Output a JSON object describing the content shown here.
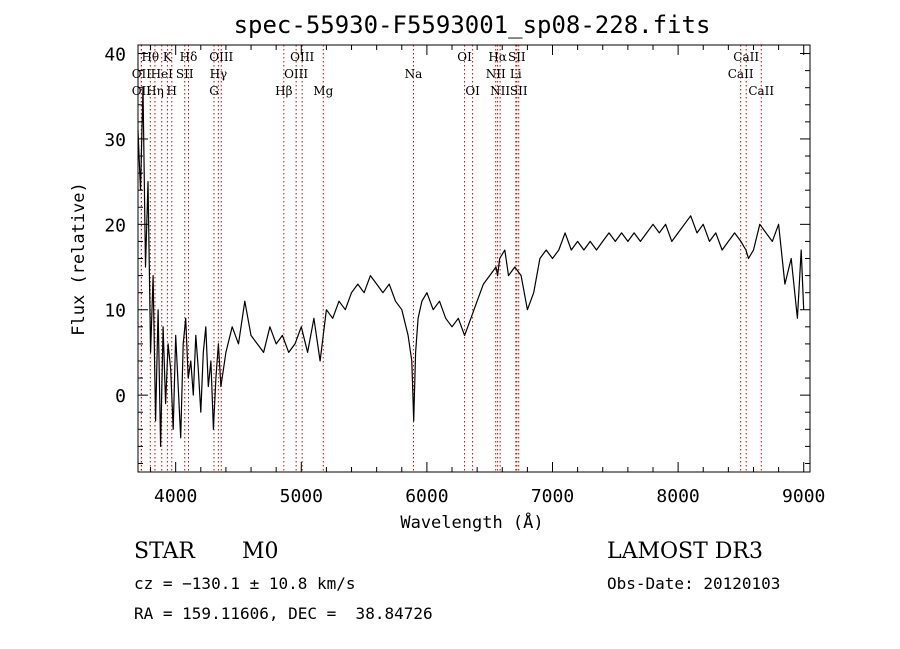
{
  "chart_data": {
    "type": "line",
    "title": "spec-55930-F5593001_sp08-228.fits",
    "xlabel": "Wavelength (Å)",
    "ylabel": "Flux (relative)",
    "xlim": [
      3700,
      9050
    ],
    "ylim": [
      -9,
      41
    ],
    "xticks": [
      4000,
      5000,
      6000,
      7000,
      8000,
      9000
    ],
    "yticks": [
      0,
      10,
      20,
      30,
      40
    ],
    "line_color": "#000000",
    "marker_color": "#cc0000",
    "series": [
      {
        "name": "flux",
        "x": [
          3700,
          3720,
          3740,
          3760,
          3780,
          3800,
          3820,
          3840,
          3860,
          3880,
          3900,
          3920,
          3940,
          3960,
          3980,
          4000,
          4020,
          4040,
          4060,
          4080,
          4100,
          4120,
          4140,
          4160,
          4180,
          4200,
          4220,
          4240,
          4260,
          4280,
          4300,
          4320,
          4340,
          4360,
          4380,
          4400,
          4450,
          4500,
          4550,
          4600,
          4650,
          4700,
          4750,
          4800,
          4850,
          4900,
          4950,
          5000,
          5050,
          5100,
          5150,
          5200,
          5250,
          5300,
          5350,
          5400,
          5450,
          5500,
          5550,
          5600,
          5650,
          5700,
          5750,
          5800,
          5850,
          5880,
          5895,
          5910,
          5930,
          5960,
          6000,
          6050,
          6100,
          6150,
          6200,
          6250,
          6300,
          6350,
          6400,
          6450,
          6500,
          6550,
          6563,
          6580,
          6620,
          6650,
          6700,
          6750,
          6800,
          6850,
          6900,
          6950,
          7000,
          7050,
          7100,
          7150,
          7200,
          7250,
          7300,
          7350,
          7400,
          7450,
          7500,
          7550,
          7600,
          7650,
          7700,
          7750,
          7800,
          7850,
          7900,
          7950,
          8000,
          8050,
          8100,
          8150,
          8200,
          8250,
          8300,
          8350,
          8400,
          8450,
          8500,
          8540,
          8560,
          8600,
          8650,
          8700,
          8750,
          8800,
          8850,
          8900,
          8950,
          8980,
          9000
        ],
        "y": [
          31,
          24,
          36,
          15,
          25,
          5,
          14,
          -3,
          10,
          -6,
          8,
          -1,
          6,
          3,
          -4,
          7,
          1,
          -5,
          6,
          9,
          2,
          4,
          0,
          7,
          3,
          -2,
          5,
          8,
          1,
          4,
          -4,
          2,
          6,
          1,
          3,
          5,
          8,
          6,
          11,
          7,
          6,
          5,
          8,
          6,
          7,
          5,
          6,
          8,
          5,
          9,
          4,
          10,
          9,
          11,
          10,
          12,
          13,
          12,
          14,
          13,
          12,
          13,
          11,
          10,
          7,
          4,
          -3,
          5,
          9,
          11,
          12,
          10,
          11,
          9,
          8,
          9,
          7,
          9,
          11,
          13,
          14,
          15,
          14,
          16,
          17,
          14,
          15,
          14,
          10,
          12,
          16,
          17,
          16,
          17,
          19,
          17,
          18,
          17,
          18,
          17,
          18,
          19,
          18,
          19,
          18,
          19,
          18,
          19,
          20,
          19,
          20,
          18,
          19,
          20,
          21,
          19,
          20,
          18,
          19,
          17,
          18,
          19,
          18,
          17,
          16,
          17,
          20,
          19,
          18,
          20,
          13,
          16,
          9,
          17,
          10
        ]
      }
    ],
    "spectral_lines": [
      {
        "name": "Hθ",
        "x": 3798,
        "row": 1
      },
      {
        "name": "OII",
        "x": 3727,
        "row": 2
      },
      {
        "name": "OII",
        "x": 3727,
        "row": 3
      },
      {
        "name": "Hη",
        "x": 3835,
        "row": 3
      },
      {
        "name": "K",
        "x": 3934,
        "row": 1
      },
      {
        "name": "HeI",
        "x": 3889,
        "row": 2
      },
      {
        "name": "H",
        "x": 3969,
        "row": 3
      },
      {
        "name": "Hδ",
        "x": 4102,
        "row": 1
      },
      {
        "name": "SII",
        "x": 4072,
        "row": 2
      },
      {
        "name": "OIII",
        "x": 4363,
        "row": 1
      },
      {
        "name": "Hγ",
        "x": 4340,
        "row": 2
      },
      {
        "name": "G",
        "x": 4305,
        "row": 3
      },
      {
        "name": "OIII",
        "x": 5007,
        "row": 1
      },
      {
        "name": "OIII",
        "x": 4959,
        "row": 2
      },
      {
        "name": "Hβ",
        "x": 4861,
        "row": 3
      },
      {
        "name": "Mg",
        "x": 5175,
        "row": 3
      },
      {
        "name": "Na",
        "x": 5893,
        "row": 2
      },
      {
        "name": "OI",
        "x": 6300,
        "row": 1
      },
      {
        "name": "OI",
        "x": 6364,
        "row": 3
      },
      {
        "name": "Hα",
        "x": 6563,
        "row": 1
      },
      {
        "name": "SII",
        "x": 6716,
        "row": 1
      },
      {
        "name": "NII",
        "x": 6548,
        "row": 2
      },
      {
        "name": "Li",
        "x": 6708,
        "row": 2
      },
      {
        "name": "NII",
        "x": 6583,
        "row": 3
      },
      {
        "name": "SII",
        "x": 6731,
        "row": 3
      },
      {
        "name": "CaII",
        "x": 8542,
        "row": 1
      },
      {
        "name": "CaII",
        "x": 8498,
        "row": 2
      },
      {
        "name": "CaII",
        "x": 8662,
        "row": 3
      }
    ]
  },
  "info": {
    "object_class": "STAR",
    "subclass": "M0",
    "survey": "LAMOST DR3",
    "cz": "cz = −130.1 ± 10.8 km/s",
    "obs_date": "Obs-Date: 20120103",
    "coords": "RA = 159.11606, DEC =  38.84726"
  }
}
